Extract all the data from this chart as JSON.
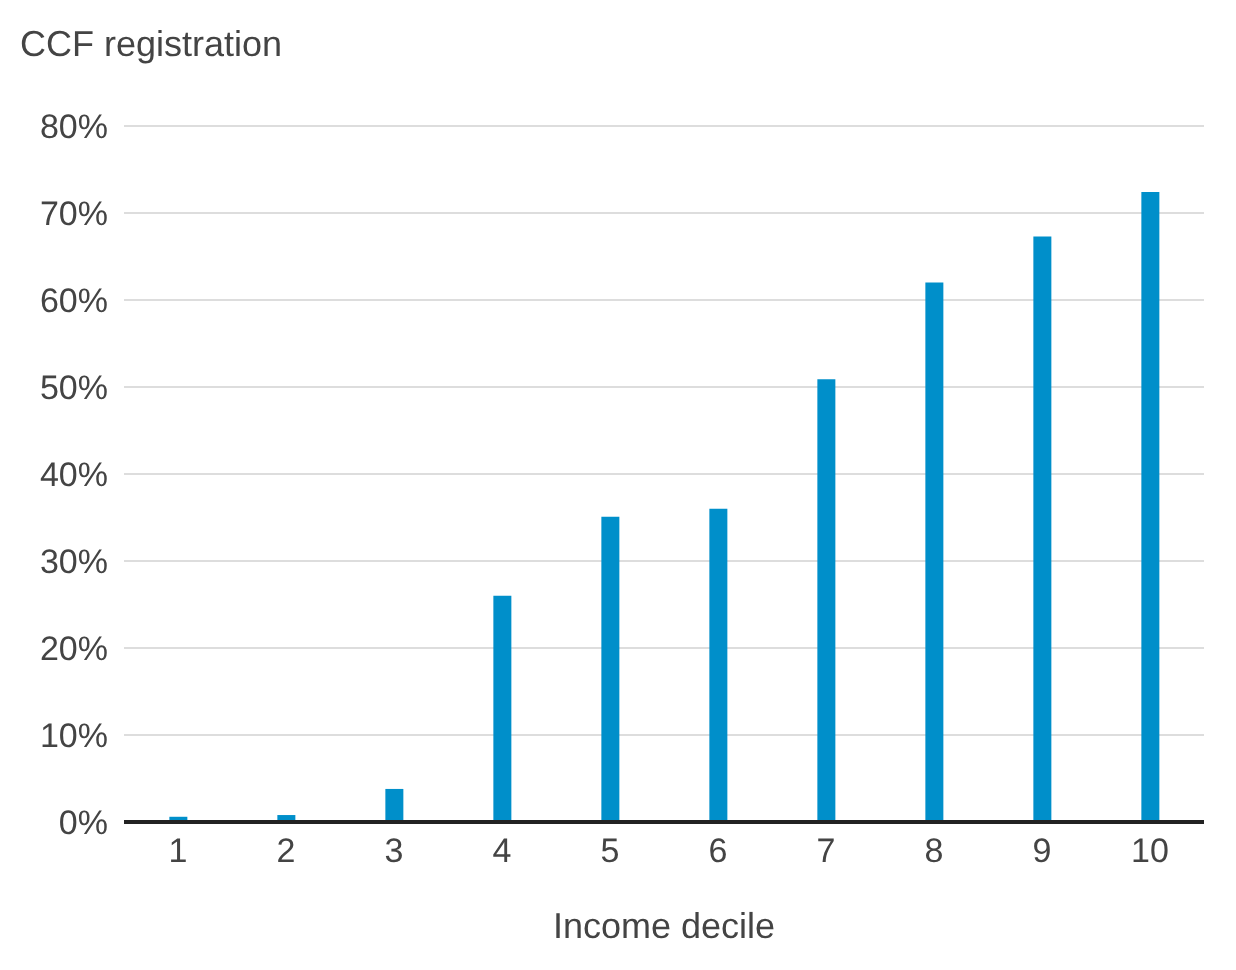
{
  "chart_data": {
    "type": "bar",
    "ylabel": "CCF registration",
    "xlabel": "Income decile",
    "categories": [
      "1",
      "2",
      "3",
      "4",
      "5",
      "6",
      "7",
      "8",
      "9",
      "10"
    ],
    "values": [
      0.6,
      0.8,
      3.8,
      26,
      35.1,
      36,
      50.9,
      62,
      67.3,
      72.4
    ],
    "color": "#008fca",
    "ylim": [
      0,
      80
    ],
    "yticks": [
      {
        "value": 0,
        "label": "0%"
      },
      {
        "value": 10,
        "label": "10%"
      },
      {
        "value": 20,
        "label": "20%"
      },
      {
        "value": 30,
        "label": "30%"
      },
      {
        "value": 40,
        "label": "40%"
      },
      {
        "value": 50,
        "label": "50%"
      },
      {
        "value": 60,
        "label": "60%"
      },
      {
        "value": 70,
        "label": "70%"
      },
      {
        "value": 80,
        "label": "80%"
      }
    ],
    "grid": "y",
    "legend": false
  }
}
